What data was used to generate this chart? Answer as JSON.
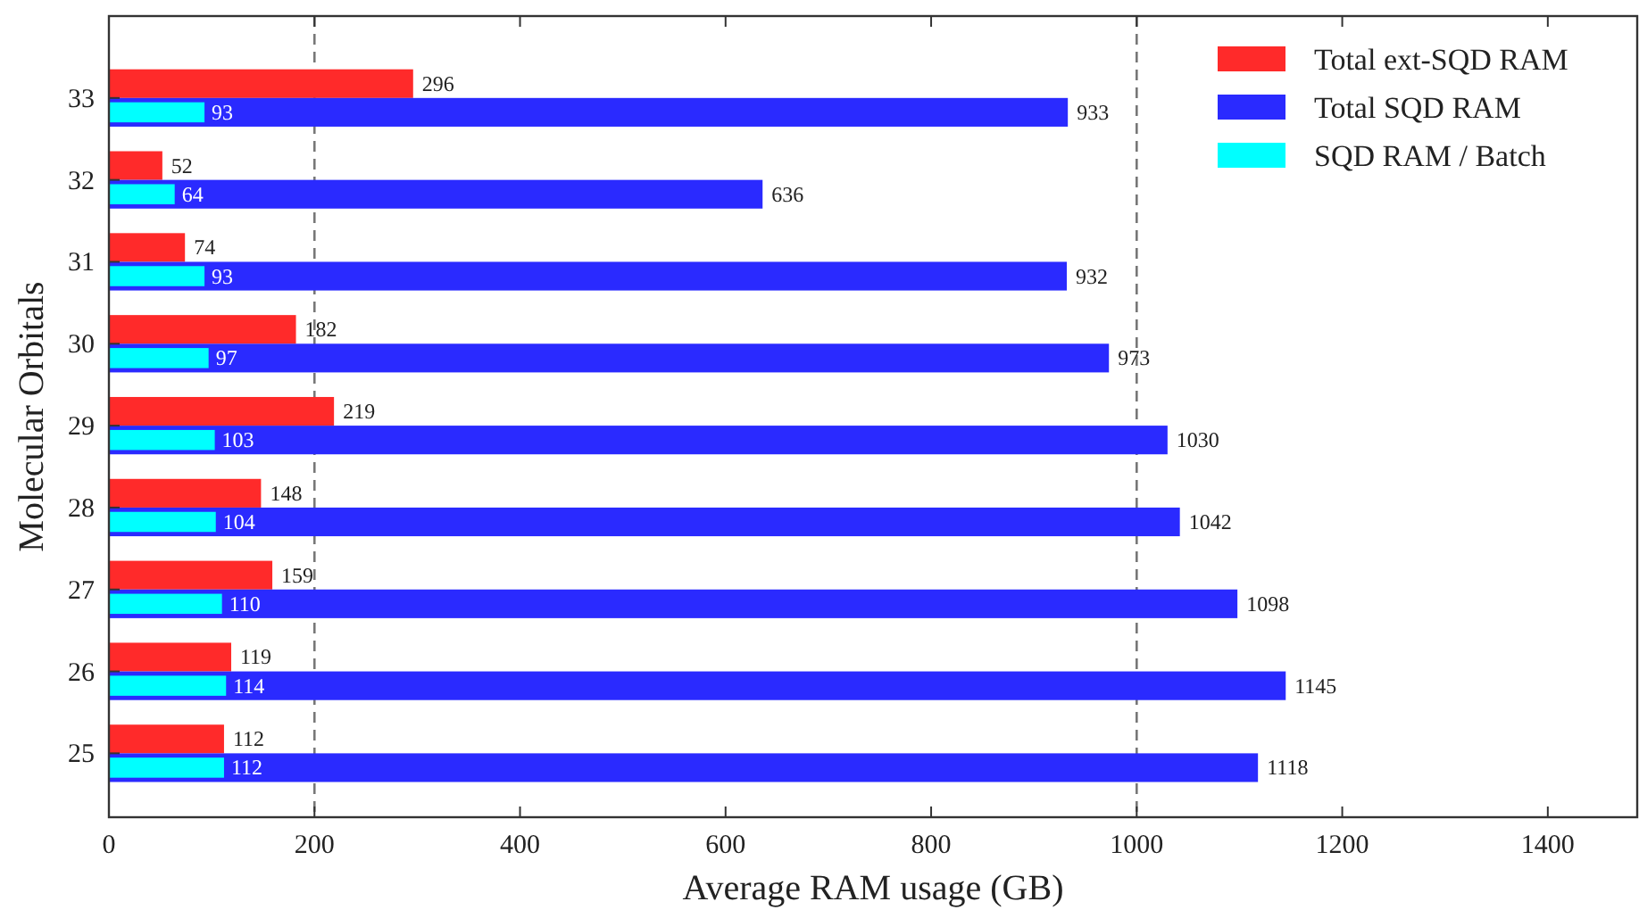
{
  "chart_data": {
    "type": "bar",
    "orientation": "horizontal",
    "xlabel": "Average RAM usage (GB)",
    "ylabel": "Molecular Orbitals",
    "categories": [
      "33",
      "32",
      "31",
      "30",
      "29",
      "28",
      "27",
      "26",
      "25"
    ],
    "series": [
      {
        "name": "Total ext-SQD RAM",
        "color": "#ff2a2a",
        "values": [
          296,
          52,
          74,
          182,
          219,
          148,
          159,
          119,
          112
        ]
      },
      {
        "name": "Total SQD RAM",
        "color": "#2a2aff",
        "values": [
          933,
          636,
          932,
          973,
          1030,
          1042,
          1098,
          1145,
          1118
        ]
      },
      {
        "name": "SQD RAM / Batch",
        "color": "#00ffff",
        "values": [
          93,
          64,
          93,
          97,
          103,
          104,
          110,
          114,
          112
        ]
      }
    ],
    "xlim": [
      0,
      1487
    ],
    "xticks": [
      0,
      200,
      400,
      600,
      800,
      1000,
      1200,
      1400
    ],
    "ref_lines": [
      {
        "axis": "x",
        "value": 200,
        "color": "#777777",
        "line_style": "dashed"
      },
      {
        "axis": "x",
        "value": 1000,
        "color": "#777777",
        "line_style": "dashed"
      }
    ],
    "data_labels": true,
    "legend": "top right",
    "grid": false
  }
}
